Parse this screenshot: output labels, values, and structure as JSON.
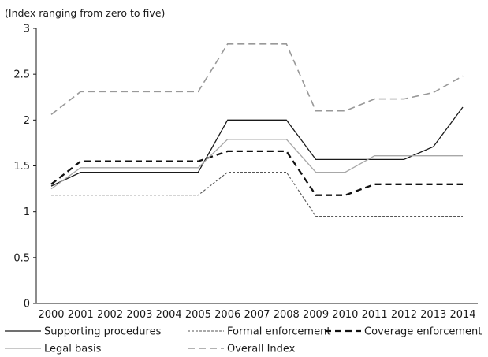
{
  "chart_data": {
    "type": "line",
    "ylabel": "(Index ranging from zero to five)",
    "categories": [
      "2000",
      "2001",
      "2002",
      "2003",
      "2004",
      "2005",
      "2006",
      "2007",
      "2008",
      "2009",
      "2010",
      "2011",
      "2012",
      "2013",
      "2014"
    ],
    "ylim": [
      0,
      3
    ],
    "yticks": [
      "0",
      "0.5",
      "1",
      "1.5",
      "2",
      "2.5",
      "3"
    ],
    "grid": false,
    "legend_position": "bottom",
    "series": [
      {
        "name": "Supporting procedures",
        "color": "#1a1a1a",
        "dash": "solid",
        "values": [
          1.28,
          1.43,
          1.43,
          1.43,
          1.43,
          1.43,
          2.0,
          2.0,
          2.0,
          1.57,
          1.57,
          1.57,
          1.57,
          1.71,
          2.14
        ]
      },
      {
        "name": "Formal enforcement",
        "color": "#555555",
        "dash": "dotted",
        "values": [
          1.18,
          1.18,
          1.18,
          1.18,
          1.18,
          1.18,
          1.43,
          1.43,
          1.43,
          0.95,
          0.95,
          0.95,
          0.95,
          0.95,
          0.95
        ]
      },
      {
        "name": "Coverage enforcement",
        "color": "#111111",
        "dash": "dashed-bold",
        "values": [
          1.3,
          1.55,
          1.55,
          1.55,
          1.55,
          1.55,
          1.66,
          1.66,
          1.66,
          1.18,
          1.18,
          1.3,
          1.3,
          1.3,
          1.3
        ]
      },
      {
        "name": "Legal basis",
        "color": "#a8a8a8",
        "dash": "solid",
        "values": [
          1.25,
          1.48,
          1.48,
          1.48,
          1.48,
          1.48,
          1.79,
          1.79,
          1.79,
          1.43,
          1.43,
          1.61,
          1.61,
          1.61,
          1.61
        ]
      },
      {
        "name": "Overall Index",
        "color": "#999999",
        "dash": "dashed",
        "values": [
          2.06,
          2.31,
          2.31,
          2.31,
          2.31,
          2.31,
          2.83,
          2.83,
          2.83,
          2.1,
          2.1,
          2.23,
          2.23,
          2.3,
          2.48
        ]
      }
    ]
  }
}
